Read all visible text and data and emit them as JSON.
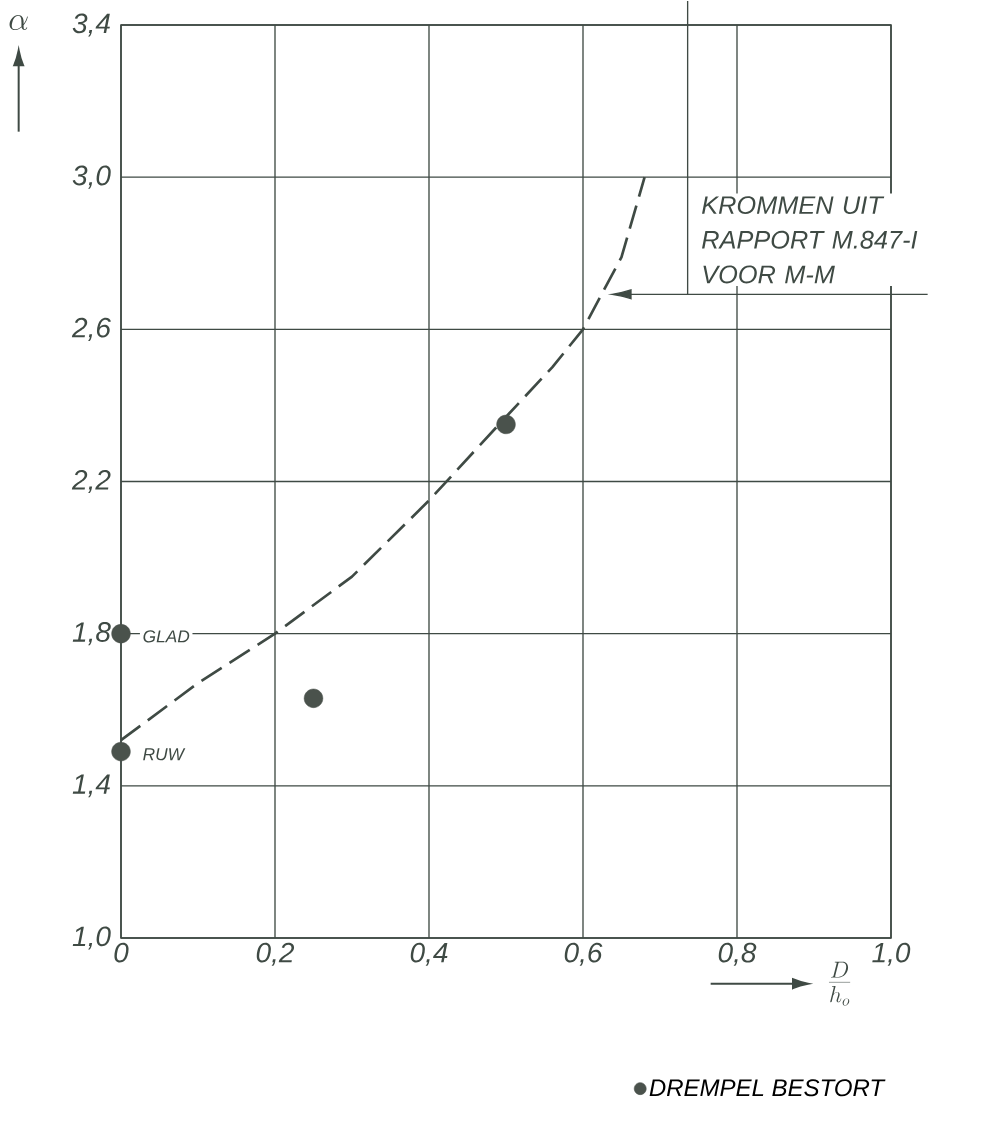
{
  "chart_data": {
    "type": "line",
    "xlabel": "\\frac{D}{h_{o}}",
    "ylabel": "\\alpha",
    "xlim": [
      0,
      1.0
    ],
    "ylim": [
      1.0,
      3.4
    ],
    "xticks": [
      {
        "value": 0,
        "label": "0"
      },
      {
        "value": 0.2,
        "label": "0,2"
      },
      {
        "value": 0.4,
        "label": "0,4"
      },
      {
        "value": 0.6,
        "label": "0,6"
      },
      {
        "value": 0.8,
        "label": "0,8"
      },
      {
        "value": 1.0,
        "label": "1,0"
      }
    ],
    "yticks": [
      {
        "value": 1.0,
        "label": "1,0"
      },
      {
        "value": 1.4,
        "label": "1,4"
      },
      {
        "value": 1.8,
        "label": "1,8"
      },
      {
        "value": 2.2,
        "label": "2,2"
      },
      {
        "value": 2.6,
        "label": "2,6"
      },
      {
        "value": 3.0,
        "label": "3,0"
      },
      {
        "value": 3.4,
        "label": "3,4"
      }
    ],
    "grid": true,
    "legend": "bottom right",
    "series": [
      {
        "line_style": "dashed",
        "color": "#3f4a44",
        "x": [
          0,
          0.1,
          0.2,
          0.3,
          0.4,
          0.5,
          0.56,
          0.6,
          0.65,
          0.68
        ],
        "values": [
          1.52,
          1.67,
          1.8,
          1.95,
          2.15,
          2.37,
          2.5,
          2.6,
          2.79,
          3.0
        ]
      },
      {
        "type": "scatter",
        "name": "DREMPEL BESTORT",
        "color": "#4a524c",
        "x": [
          0,
          0,
          0.25,
          0.5
        ],
        "values": [
          1.8,
          1.49,
          1.63,
          2.35
        ]
      }
    ],
    "annotations": [
      "KROMMEN UIT RAPPORT M.847-I VOOR M-M",
      {
        "text": "GLAD",
        "x": 0,
        "y": 1.8
      },
      {
        "text": "RUW",
        "x": 0,
        "y": 1.49
      }
    ]
  }
}
